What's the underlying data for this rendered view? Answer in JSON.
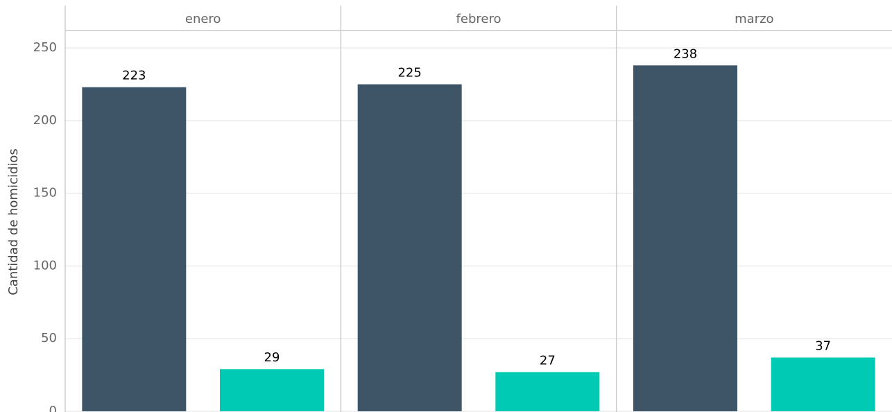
{
  "chart_data": {
    "type": "bar",
    "y_label": "Cantidad de homicidios",
    "categories": [
      "enero",
      "febrero",
      "marzo"
    ],
    "series": [
      {
        "color": "#3e5568",
        "values": [
          223,
          225,
          238
        ]
      },
      {
        "color": "#00c9b4",
        "values": [
          29,
          27,
          37
        ]
      }
    ],
    "ylim": [
      0,
      262
    ],
    "yticks": [
      0,
      50,
      100,
      150,
      200,
      250
    ],
    "grid": true
  }
}
